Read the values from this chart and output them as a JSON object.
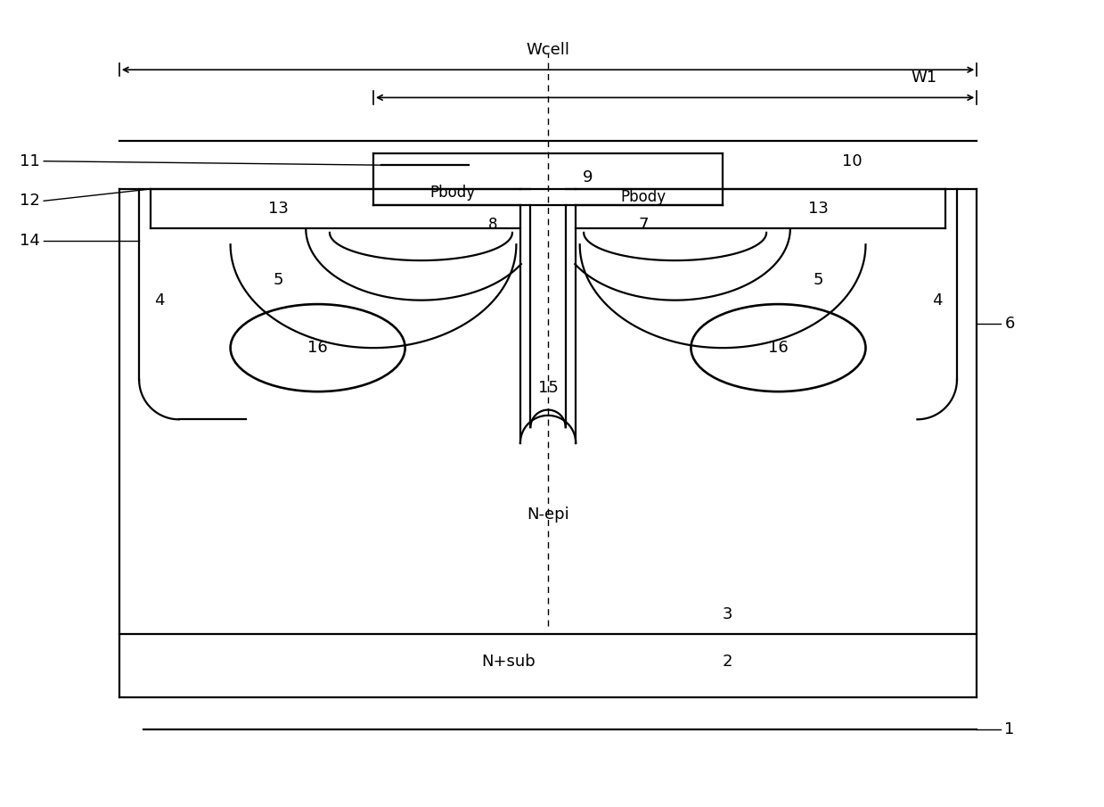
{
  "bg_color": "#ffffff",
  "line_color": "#000000",
  "fig_width": 12.39,
  "fig_height": 9.05,
  "labels": {
    "Wcell": "Wcell",
    "W1": "W1",
    "N_epi": "N-epi",
    "N_sub": "N+sub",
    "Pbody_left": "Pbody",
    "Pbody_right": "Pbody",
    "num_1": "1",
    "num_2": "2",
    "num_3": "3",
    "num_4_left": "4",
    "num_4_right": "4",
    "num_5_left": "5",
    "num_5_right": "5",
    "num_6": "6",
    "num_7": "7",
    "num_8": "8",
    "num_9": "9",
    "num_10": "10",
    "num_11": "11",
    "num_12": "12",
    "num_13_left": "13",
    "num_13_right": "13",
    "num_14": "14",
    "num_15": "15",
    "num_16_left": "16",
    "num_16_right": "16"
  }
}
